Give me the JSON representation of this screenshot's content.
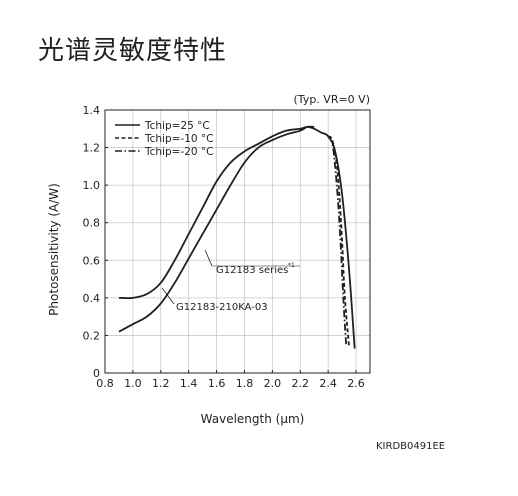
{
  "page_title": "光谱灵敏度特性",
  "figure_id": "KIRDB0491EE",
  "chart_data": {
    "type": "line",
    "title": "",
    "condition_note": "(Typ. VR=0 V)",
    "xlabel": "Wavelength (μm)",
    "ylabel": "Photosensitivity (A/W)",
    "xlim": [
      0.8,
      2.7
    ],
    "ylim": [
      0,
      1.4
    ],
    "x_ticks": [
      "0.8",
      "1.0",
      "1.2",
      "1.4",
      "1.6",
      "1.8",
      "2.0",
      "2.2",
      "2.4",
      "2.6"
    ],
    "y_ticks": [
      "0",
      "0.2",
      "0.4",
      "0.6",
      "0.8",
      "1.0",
      "1.2",
      "1.4"
    ],
    "grid": true,
    "legend_position": "top-left",
    "legend": [
      {
        "label": "Tchip=25 °C",
        "style": "solid"
      },
      {
        "label": "Tchip=-10 °C",
        "style": "dashed"
      },
      {
        "label": "Tchip=-20 °C",
        "style": "dashdot"
      }
    ],
    "annotations": [
      {
        "text": "G12183 series",
        "superscript": "*1"
      },
      {
        "text": "G12183-210KA-03"
      }
    ],
    "series": [
      {
        "style": "solid",
        "curve": "G12183 series",
        "x": [
          0.9,
          1.0,
          1.1,
          1.2,
          1.3,
          1.4,
          1.5,
          1.6,
          1.7,
          1.8,
          1.9,
          2.0,
          2.1,
          2.2,
          2.25,
          2.3,
          2.35,
          2.4,
          2.45,
          2.5,
          2.55,
          2.59
        ],
        "y": [
          0.4,
          0.4,
          0.42,
          0.48,
          0.6,
          0.74,
          0.88,
          1.02,
          1.12,
          1.18,
          1.22,
          1.26,
          1.29,
          1.3,
          1.31,
          1.3,
          1.28,
          1.26,
          1.18,
          0.95,
          0.55,
          0.13
        ]
      },
      {
        "style": "solid",
        "curve": "G12183-210KA-03",
        "x": [
          0.9,
          1.0,
          1.1,
          1.2,
          1.3,
          1.4,
          1.5,
          1.6,
          1.7,
          1.8,
          1.9,
          2.0,
          2.1,
          2.2,
          2.25,
          2.3
        ],
        "y": [
          0.22,
          0.26,
          0.3,
          0.37,
          0.48,
          0.61,
          0.74,
          0.87,
          1.0,
          1.12,
          1.2,
          1.24,
          1.27,
          1.29,
          1.31,
          1.31
        ]
      },
      {
        "style": "dashed",
        "name": "Tchip=-10 °C",
        "x": [
          2.4,
          2.43,
          2.46,
          2.48,
          2.5,
          2.52,
          2.55
        ],
        "y": [
          1.26,
          1.24,
          1.12,
          0.95,
          0.7,
          0.4,
          0.14
        ]
      },
      {
        "style": "dashdot",
        "name": "Tchip=-20 °C",
        "x": [
          2.4,
          2.43,
          2.45,
          2.47,
          2.49,
          2.51,
          2.53
        ],
        "y": [
          1.26,
          1.22,
          1.1,
          0.92,
          0.68,
          0.38,
          0.14
        ]
      }
    ]
  }
}
